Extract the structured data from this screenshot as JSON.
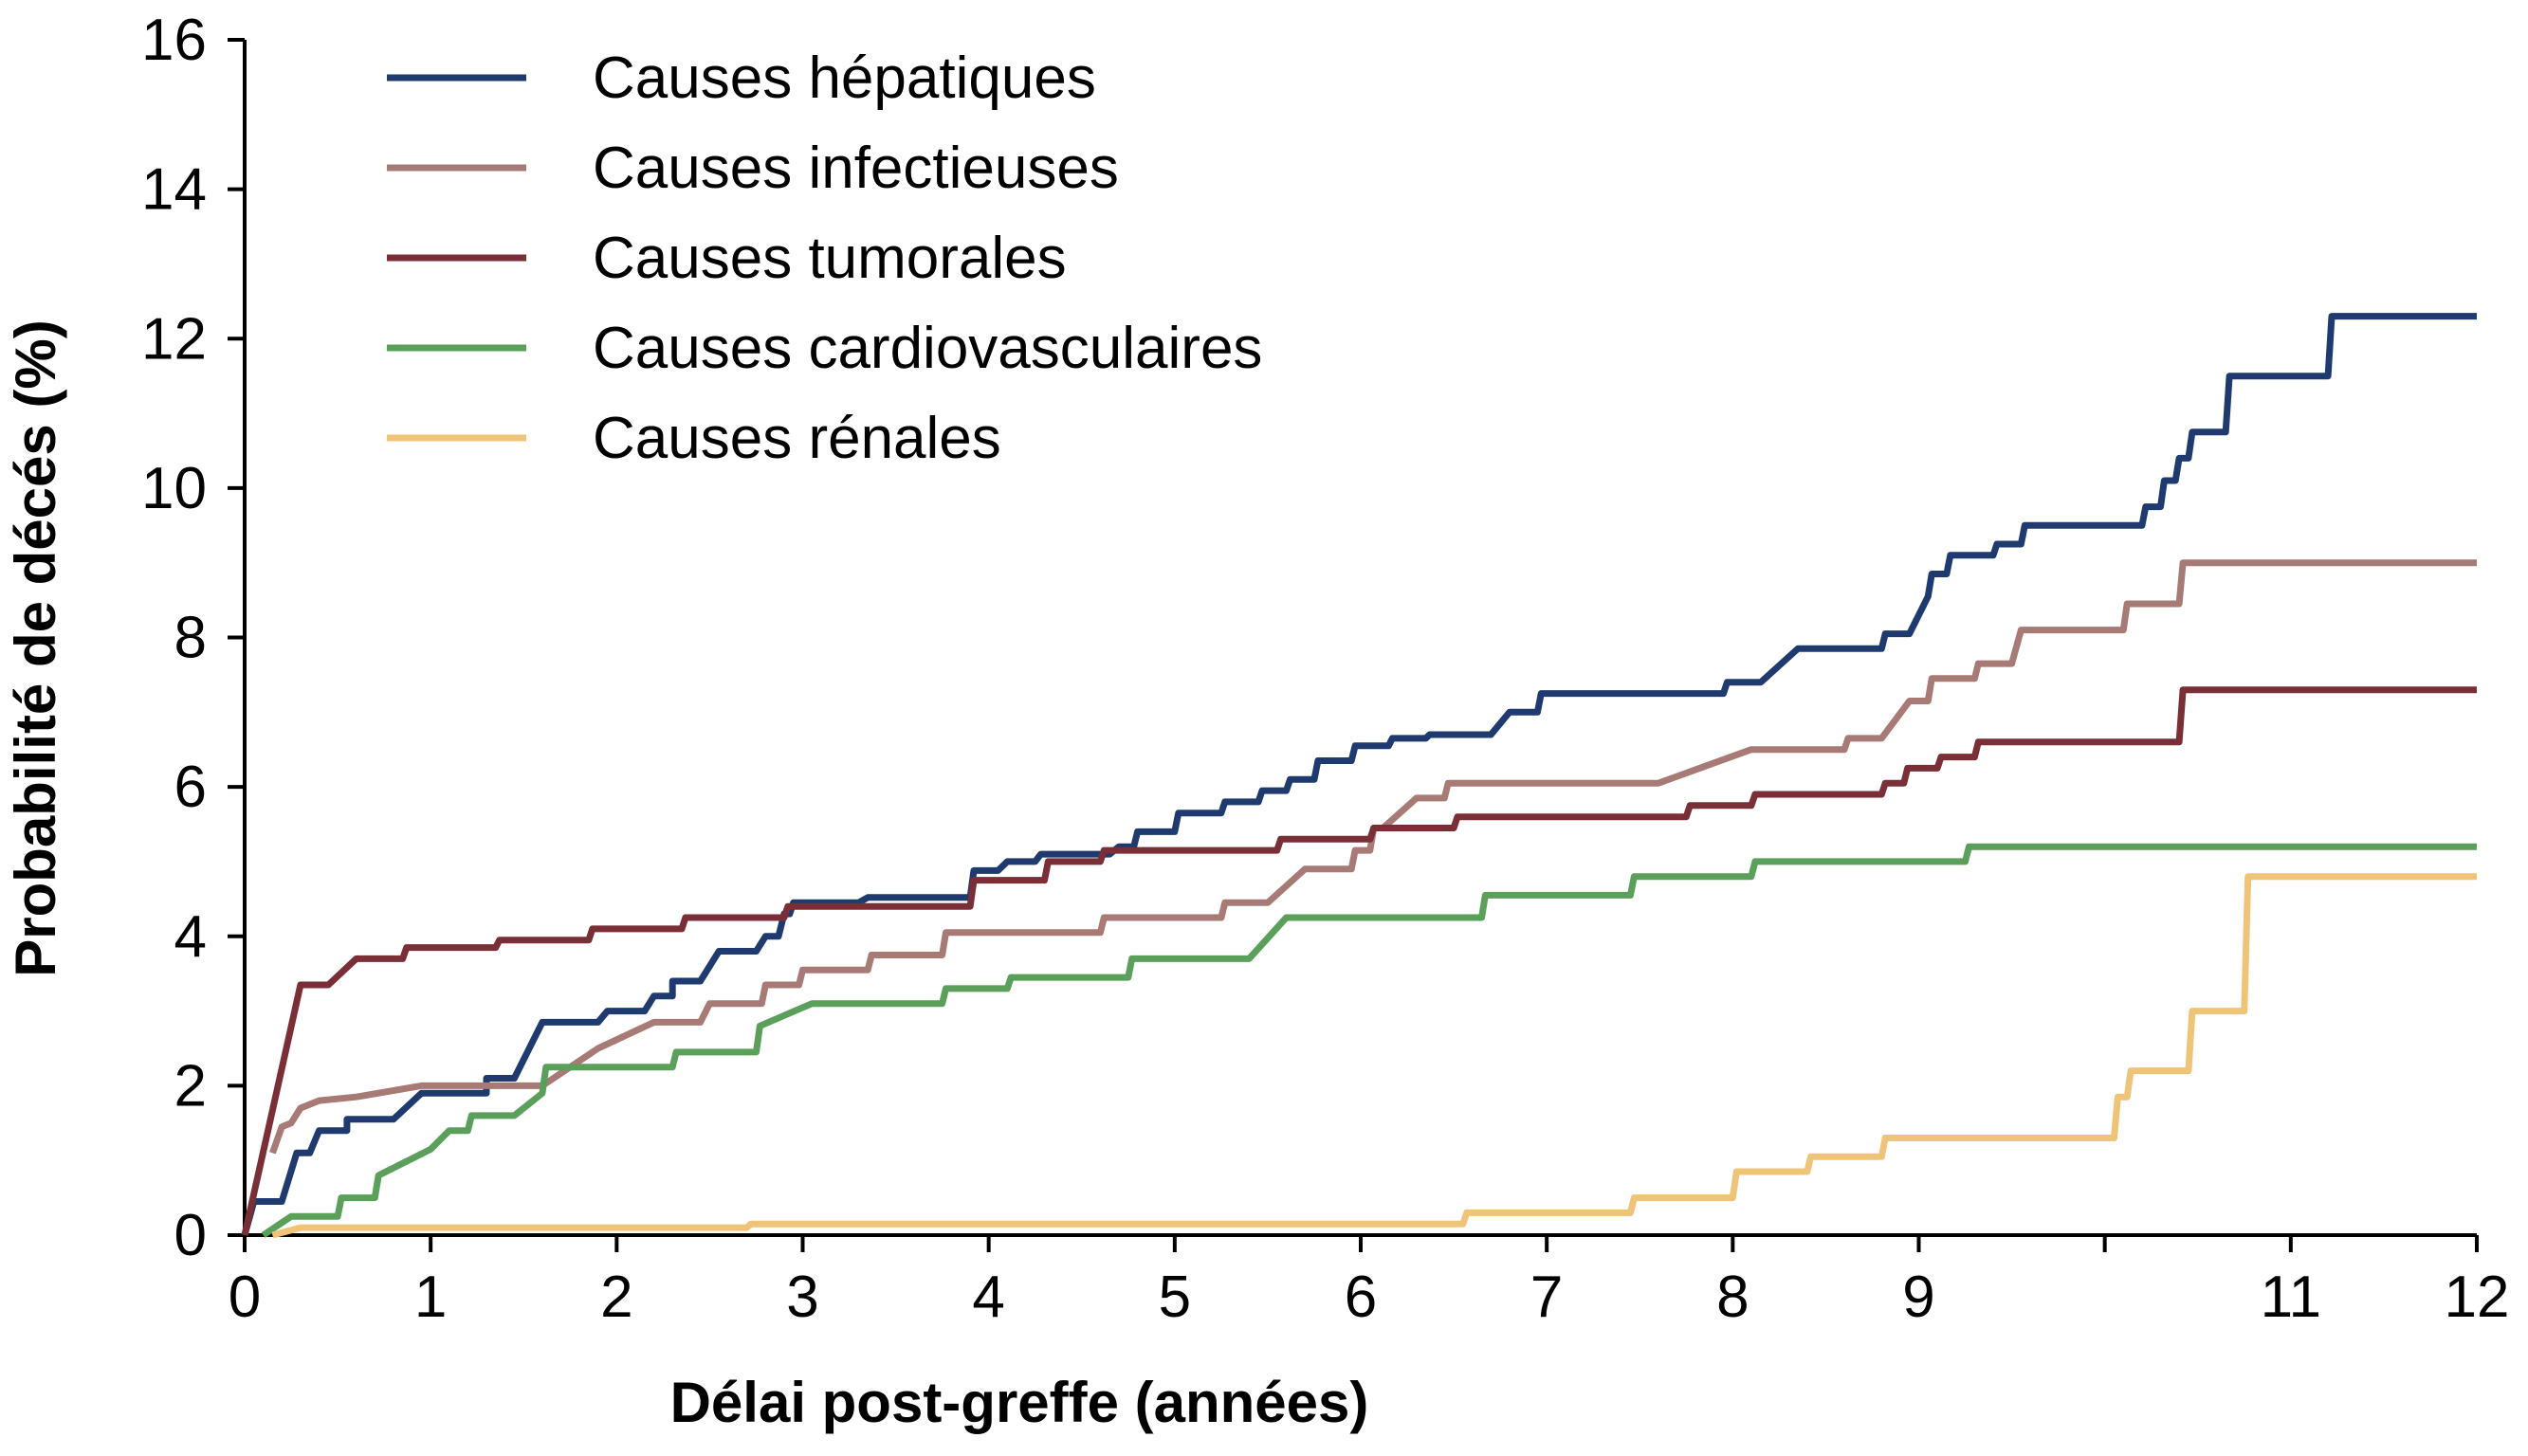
{
  "chart_data": {
    "type": "line",
    "xlabel": "Délai post-greffe (années)",
    "ylabel": "Probabilité de décés (%)",
    "xlim": [
      0,
      12
    ],
    "ylim": [
      0,
      16
    ],
    "x_ticks": [
      0,
      1,
      2,
      3,
      4,
      5,
      6,
      7,
      8,
      9,
      10,
      11,
      12
    ],
    "x_tick_labels": [
      "0",
      "1",
      "2",
      "3",
      "4",
      "5",
      "6",
      "7",
      "8",
      "9",
      "",
      "11",
      "12"
    ],
    "y_ticks": [
      0,
      2,
      4,
      6,
      8,
      10,
      12,
      14,
      16
    ],
    "y_tick_labels": [
      "0",
      "2",
      "4",
      "6",
      "8",
      "10",
      "12",
      "14",
      "16"
    ],
    "grid": false,
    "legend_position": "top-left",
    "series": [
      {
        "name": "Causes hépatiques",
        "color": "#1f3a6e",
        "points": [
          [
            0,
            0
          ],
          [
            0.05,
            0.45
          ],
          [
            0.2,
            0.45
          ],
          [
            0.28,
            1.1
          ],
          [
            0.35,
            1.1
          ],
          [
            0.4,
            1.4
          ],
          [
            0.55,
            1.4
          ],
          [
            0.55,
            1.55
          ],
          [
            0.8,
            1.55
          ],
          [
            0.95,
            1.9
          ],
          [
            1.3,
            1.9
          ],
          [
            1.3,
            2.1
          ],
          [
            1.45,
            2.1
          ],
          [
            1.6,
            2.85
          ],
          [
            1.9,
            2.85
          ],
          [
            1.95,
            3.0
          ],
          [
            2.15,
            3.0
          ],
          [
            2.2,
            3.2
          ],
          [
            2.3,
            3.2
          ],
          [
            2.3,
            3.4
          ],
          [
            2.45,
            3.4
          ],
          [
            2.55,
            3.8
          ],
          [
            2.75,
            3.8
          ],
          [
            2.8,
            4.0
          ],
          [
            2.87,
            4.0
          ],
          [
            2.9,
            4.3
          ],
          [
            2.93,
            4.3
          ],
          [
            2.95,
            4.45
          ],
          [
            3.3,
            4.45
          ],
          [
            3.35,
            4.52
          ],
          [
            3.9,
            4.52
          ],
          [
            3.92,
            4.88
          ],
          [
            4.05,
            4.88
          ],
          [
            4.1,
            5.0
          ],
          [
            4.25,
            5.0
          ],
          [
            4.28,
            5.1
          ],
          [
            4.65,
            5.1
          ],
          [
            4.7,
            5.2
          ],
          [
            4.78,
            5.2
          ],
          [
            4.8,
            5.4
          ],
          [
            5.0,
            5.4
          ],
          [
            5.02,
            5.65
          ],
          [
            5.25,
            5.65
          ],
          [
            5.27,
            5.8
          ],
          [
            5.45,
            5.8
          ],
          [
            5.47,
            5.95
          ],
          [
            5.6,
            5.95
          ],
          [
            5.62,
            6.1
          ],
          [
            5.75,
            6.1
          ],
          [
            5.77,
            6.35
          ],
          [
            5.95,
            6.35
          ],
          [
            5.97,
            6.55
          ],
          [
            6.15,
            6.55
          ],
          [
            6.17,
            6.65
          ],
          [
            6.35,
            6.65
          ],
          [
            6.37,
            6.7
          ],
          [
            6.7,
            6.7
          ],
          [
            6.8,
            7.0
          ],
          [
            6.95,
            7.0
          ],
          [
            6.97,
            7.25
          ],
          [
            7.95,
            7.25
          ],
          [
            7.97,
            7.4
          ],
          [
            8.15,
            7.4
          ],
          [
            8.35,
            7.85
          ],
          [
            8.8,
            7.85
          ],
          [
            8.82,
            8.05
          ],
          [
            8.95,
            8.05
          ],
          [
            9.05,
            8.55
          ],
          [
            9.07,
            8.85
          ],
          [
            9.15,
            8.85
          ],
          [
            9.17,
            9.1
          ],
          [
            9.4,
            9.1
          ],
          [
            9.42,
            9.25
          ],
          [
            9.55,
            9.25
          ],
          [
            9.57,
            9.5
          ],
          [
            10.2,
            9.5
          ],
          [
            10.22,
            9.75
          ],
          [
            10.3,
            9.75
          ],
          [
            10.32,
            10.1
          ],
          [
            10.38,
            10.1
          ],
          [
            10.4,
            10.4
          ],
          [
            10.45,
            10.4
          ],
          [
            10.47,
            10.75
          ],
          [
            10.65,
            10.75
          ],
          [
            10.67,
            11.5
          ],
          [
            11.2,
            11.5
          ],
          [
            11.22,
            12.3
          ],
          [
            12.0,
            12.3
          ]
        ]
      },
      {
        "name": "Causes infectieuses",
        "color": "#a87a76",
        "points": [
          [
            0.15,
            1.1
          ],
          [
            0.2,
            1.45
          ],
          [
            0.25,
            1.5
          ],
          [
            0.3,
            1.7
          ],
          [
            0.4,
            1.8
          ],
          [
            0.6,
            1.85
          ],
          [
            0.95,
            2.0
          ],
          [
            1.6,
            2.0
          ],
          [
            1.9,
            2.5
          ],
          [
            2.2,
            2.85
          ],
          [
            2.45,
            2.85
          ],
          [
            2.5,
            3.1
          ],
          [
            2.78,
            3.1
          ],
          [
            2.8,
            3.35
          ],
          [
            2.98,
            3.35
          ],
          [
            3.0,
            3.55
          ],
          [
            3.35,
            3.55
          ],
          [
            3.37,
            3.75
          ],
          [
            3.75,
            3.75
          ],
          [
            3.77,
            4.05
          ],
          [
            4.6,
            4.05
          ],
          [
            4.62,
            4.25
          ],
          [
            5.25,
            4.25
          ],
          [
            5.27,
            4.45
          ],
          [
            5.5,
            4.45
          ],
          [
            5.7,
            4.9
          ],
          [
            5.95,
            4.9
          ],
          [
            5.97,
            5.15
          ],
          [
            6.05,
            5.15
          ],
          [
            6.07,
            5.45
          ],
          [
            6.12,
            5.45
          ],
          [
            6.3,
            5.85
          ],
          [
            6.45,
            5.85
          ],
          [
            6.47,
            6.05
          ],
          [
            7.6,
            6.05
          ],
          [
            8.1,
            6.5
          ],
          [
            8.6,
            6.5
          ],
          [
            8.62,
            6.65
          ],
          [
            8.8,
            6.65
          ],
          [
            8.95,
            7.15
          ],
          [
            9.05,
            7.15
          ],
          [
            9.07,
            7.45
          ],
          [
            9.3,
            7.45
          ],
          [
            9.32,
            7.65
          ],
          [
            9.5,
            7.65
          ],
          [
            9.55,
            8.1
          ],
          [
            10.1,
            8.1
          ],
          [
            10.12,
            8.45
          ],
          [
            10.4,
            8.45
          ],
          [
            10.42,
            9.0
          ],
          [
            12.0,
            9.0
          ]
        ]
      },
      {
        "name": "Causes tumorales",
        "color": "#7a2e36",
        "points": [
          [
            0,
            0
          ],
          [
            0.3,
            3.35
          ],
          [
            0.45,
            3.35
          ],
          [
            0.6,
            3.7
          ],
          [
            0.85,
            3.7
          ],
          [
            0.87,
            3.85
          ],
          [
            1.35,
            3.85
          ],
          [
            1.37,
            3.95
          ],
          [
            1.85,
            3.95
          ],
          [
            1.87,
            4.1
          ],
          [
            2.35,
            4.1
          ],
          [
            2.37,
            4.25
          ],
          [
            2.9,
            4.25
          ],
          [
            2.92,
            4.4
          ],
          [
            3.9,
            4.4
          ],
          [
            3.92,
            4.75
          ],
          [
            4.3,
            4.75
          ],
          [
            4.32,
            5.0
          ],
          [
            4.6,
            5.0
          ],
          [
            4.62,
            5.15
          ],
          [
            5.55,
            5.15
          ],
          [
            5.57,
            5.3
          ],
          [
            6.05,
            5.3
          ],
          [
            6.07,
            5.45
          ],
          [
            6.35,
            5.45
          ],
          [
            6.37,
            5.45
          ],
          [
            6.5,
            5.45
          ],
          [
            6.52,
            5.6
          ],
          [
            7.75,
            5.6
          ],
          [
            7.77,
            5.75
          ],
          [
            8.1,
            5.75
          ],
          [
            8.12,
            5.9
          ],
          [
            8.8,
            5.9
          ],
          [
            8.82,
            6.05
          ],
          [
            8.92,
            6.05
          ],
          [
            8.94,
            6.25
          ],
          [
            9.1,
            6.25
          ],
          [
            9.12,
            6.4
          ],
          [
            9.3,
            6.4
          ],
          [
            9.32,
            6.6
          ],
          [
            10.4,
            6.6
          ],
          [
            10.42,
            7.3
          ],
          [
            12.0,
            7.3
          ]
        ]
      },
      {
        "name": "Causes cardiovasculaires",
        "color": "#5aa05a",
        "points": [
          [
            0.1,
            0
          ],
          [
            0.25,
            0.25
          ],
          [
            0.5,
            0.25
          ],
          [
            0.52,
            0.5
          ],
          [
            0.7,
            0.5
          ],
          [
            0.72,
            0.8
          ],
          [
            1.0,
            1.15
          ],
          [
            1.1,
            1.4
          ],
          [
            1.2,
            1.4
          ],
          [
            1.22,
            1.6
          ],
          [
            1.45,
            1.6
          ],
          [
            1.6,
            1.9
          ],
          [
            1.62,
            2.25
          ],
          [
            2.3,
            2.25
          ],
          [
            2.32,
            2.45
          ],
          [
            2.75,
            2.45
          ],
          [
            2.77,
            2.8
          ],
          [
            3.05,
            3.1
          ],
          [
            3.75,
            3.1
          ],
          [
            3.77,
            3.3
          ],
          [
            4.1,
            3.3
          ],
          [
            4.12,
            3.45
          ],
          [
            4.75,
            3.45
          ],
          [
            4.77,
            3.7
          ],
          [
            5.4,
            3.7
          ],
          [
            5.6,
            4.25
          ],
          [
            6.65,
            4.25
          ],
          [
            6.67,
            4.55
          ],
          [
            7.45,
            4.55
          ],
          [
            7.47,
            4.8
          ],
          [
            8.1,
            4.8
          ],
          [
            8.12,
            5.0
          ],
          [
            9.25,
            5.0
          ],
          [
            9.27,
            5.2
          ],
          [
            12.0,
            5.2
          ]
        ]
      },
      {
        "name": "Causes rénales",
        "color": "#f0c478",
        "points": [
          [
            0.15,
            0
          ],
          [
            0.3,
            0.1
          ],
          [
            2.7,
            0.1
          ],
          [
            2.72,
            0.15
          ],
          [
            6.55,
            0.15
          ],
          [
            6.57,
            0.3
          ],
          [
            7.45,
            0.3
          ],
          [
            7.47,
            0.5
          ],
          [
            8.0,
            0.5
          ],
          [
            8.02,
            0.85
          ],
          [
            8.4,
            0.85
          ],
          [
            8.42,
            1.05
          ],
          [
            8.8,
            1.05
          ],
          [
            8.82,
            1.3
          ],
          [
            10.05,
            1.3
          ],
          [
            10.07,
            1.85
          ],
          [
            10.12,
            1.85
          ],
          [
            10.14,
            2.2
          ],
          [
            10.45,
            2.2
          ],
          [
            10.47,
            3.0
          ],
          [
            10.75,
            3.0
          ],
          [
            10.77,
            4.8
          ],
          [
            12.0,
            4.8
          ]
        ]
      }
    ]
  }
}
